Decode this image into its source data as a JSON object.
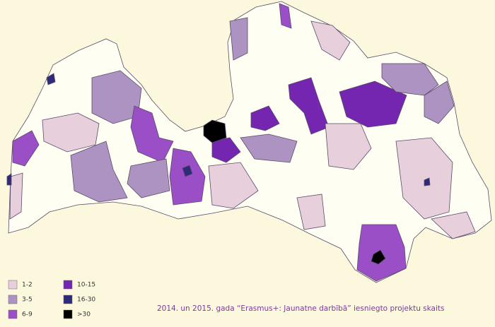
{
  "map": {
    "caption": "2014. un 2015. gada “Erasmus+: Jaunatne darbībā” iesniegto projektu skaits",
    "legend": [
      {
        "label": "1-2",
        "color": "#e8cfdc"
      },
      {
        "label": "3-5",
        "color": "#ad93c2"
      },
      {
        "label": "6-9",
        "color": "#9a4fc6"
      },
      {
        "label": "10-15",
        "color": "#7426b0"
      },
      {
        "label": "16-30",
        "color": "#2f2b7a"
      },
      {
        "label": ">30",
        "color": "#000000"
      }
    ]
  }
}
